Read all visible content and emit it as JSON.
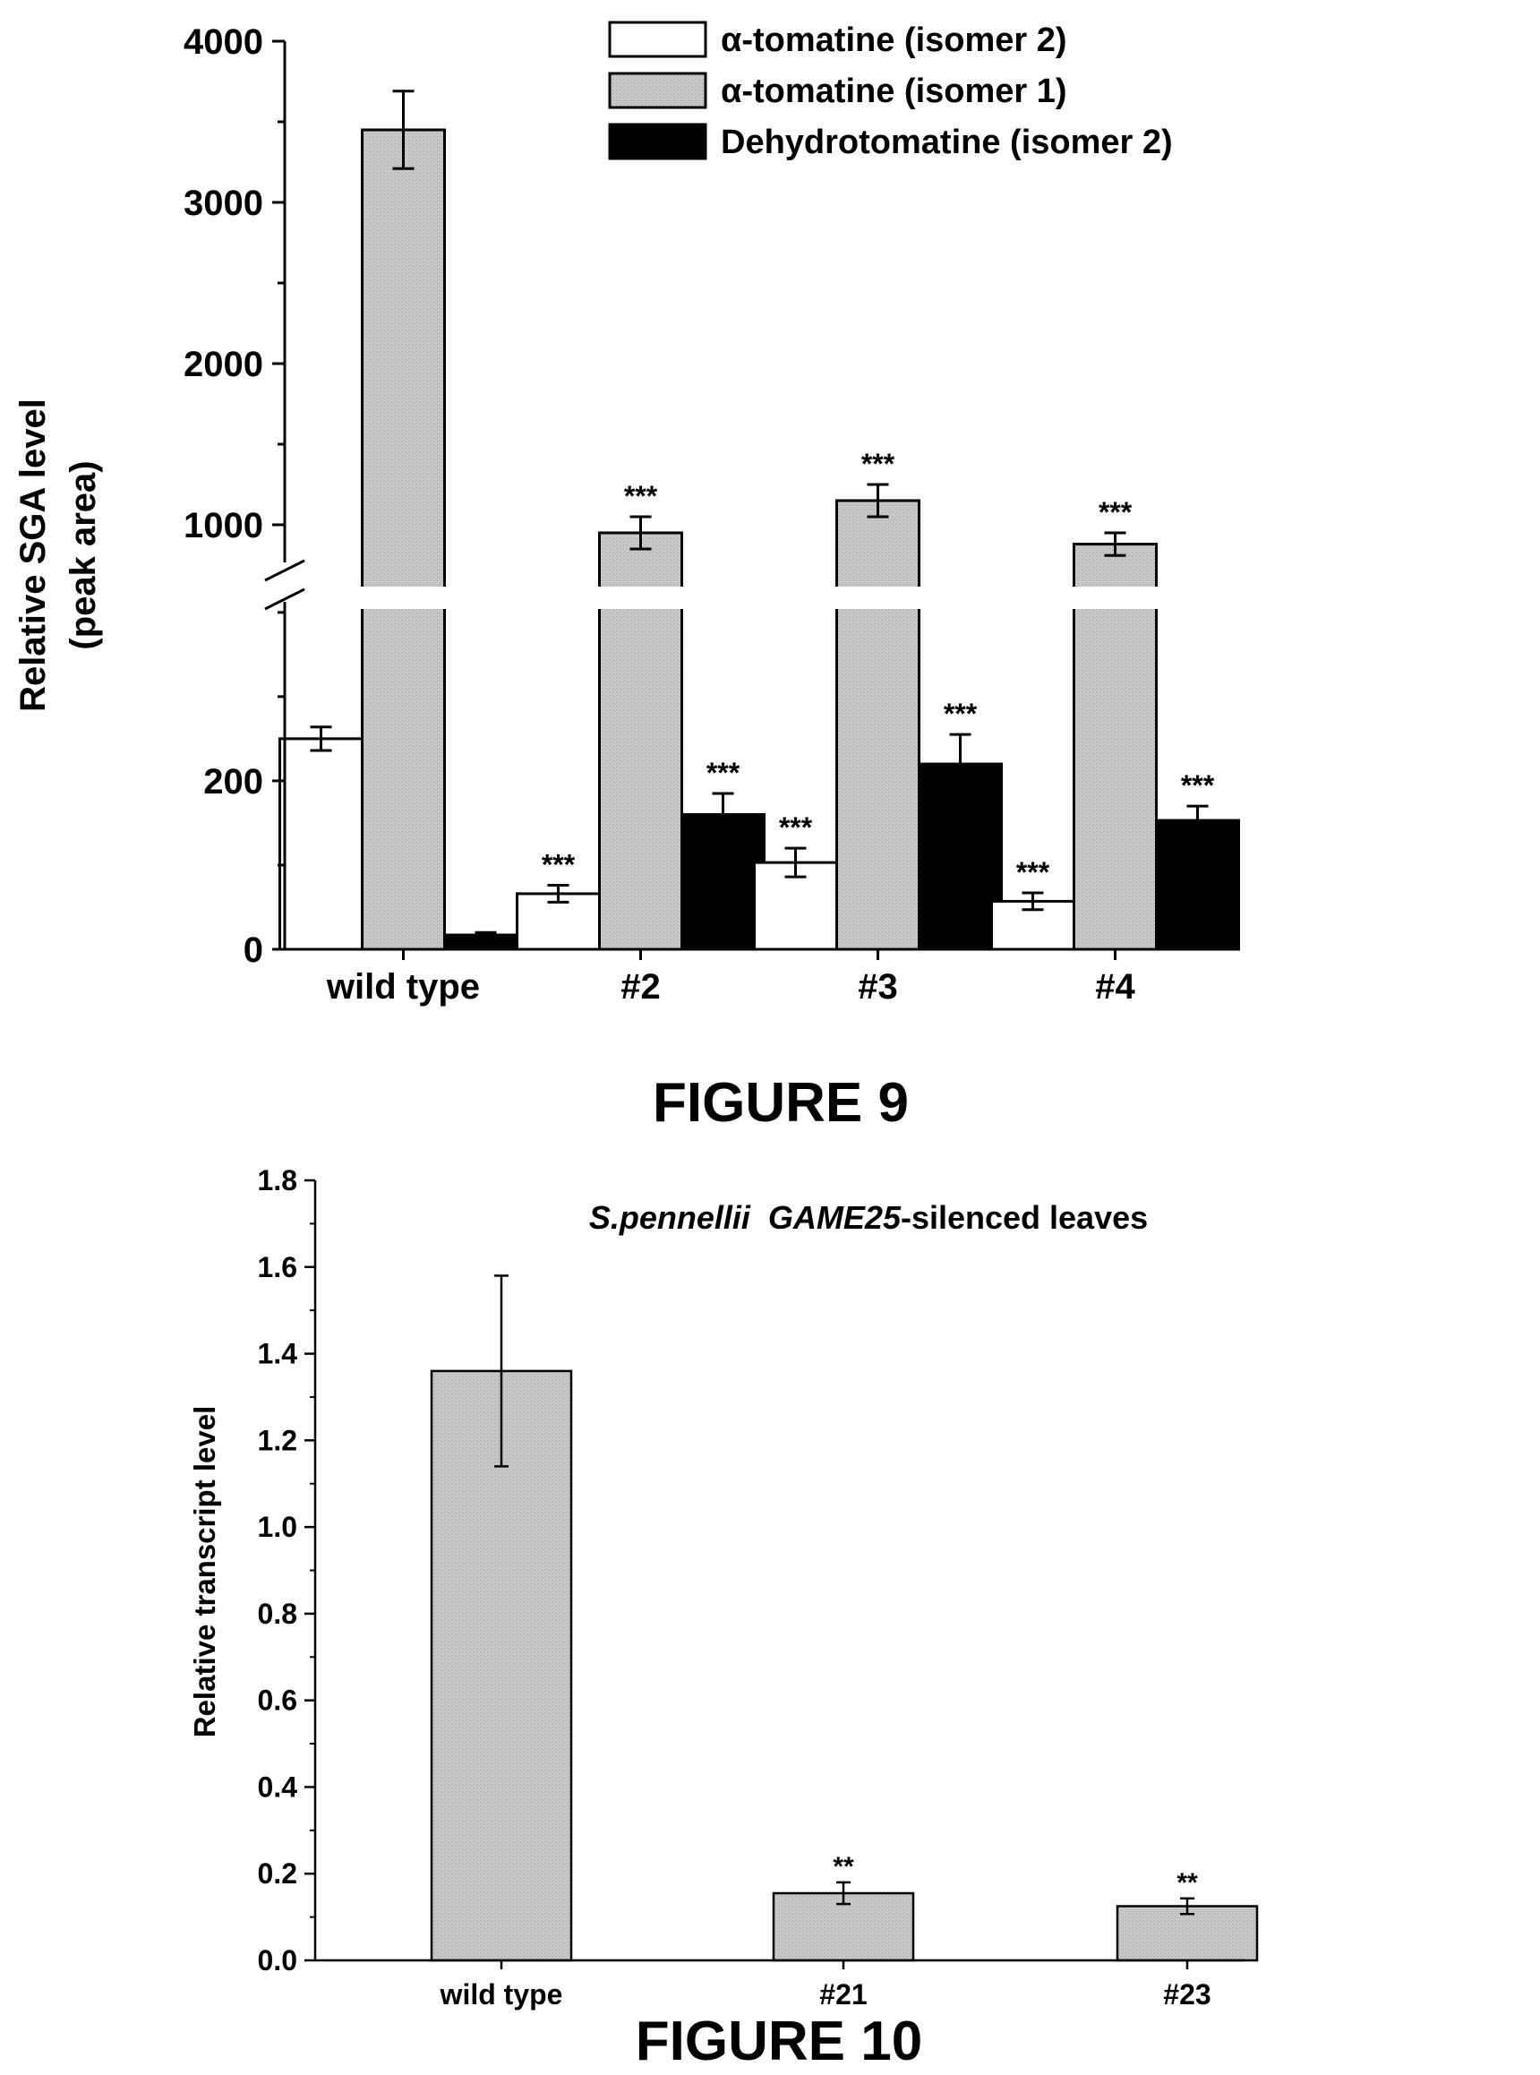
{
  "chart_data": [
    {
      "type": "bar",
      "ylabel": "Relative SGA level",
      "ylabel2": "(peak area)",
      "categories": [
        "wild type",
        "#2",
        "#3",
        "#4"
      ],
      "ylim_lower": [
        0,
        420
      ],
      "ylim_upper": [
        700,
        4000
      ],
      "yticks_lower": [
        0,
        200
      ],
      "yticks_upper": [
        1000,
        2000,
        3000,
        4000
      ],
      "axis_break": true,
      "grid": false,
      "legend_position": "top-right",
      "series": [
        {
          "name": "α-tomatine (isomer 2)",
          "values": [
            250,
            66,
            103,
            57
          ],
          "errors": [
            14,
            10,
            17,
            10
          ],
          "sig": [
            "",
            "***",
            "***",
            "***"
          ],
          "color": "#ffffff"
        },
        {
          "name": "α-tomatine (isomer 1)",
          "values": [
            3450,
            950,
            1150,
            880
          ],
          "errors": [
            240,
            100,
            100,
            70
          ],
          "sig": [
            "",
            "***",
            "***",
            "***"
          ],
          "color": "#c8c8c8"
        },
        {
          "name": "Dehydrotomatine (isomer 2)",
          "values": [
            17,
            160,
            220,
            153
          ],
          "errors": [
            3,
            25,
            35,
            17
          ],
          "sig": [
            "",
            "***",
            "***",
            "***"
          ],
          "color": "#000000"
        }
      ],
      "caption": "FIGURE 9"
    },
    {
      "type": "bar",
      "title_italic_1": "S.pennellii",
      "title_italic_2": "GAME25",
      "title_rest": "-silenced leaves",
      "ylabel": "Relative transcript level",
      "categories": [
        "wild type",
        "#21",
        "#23"
      ],
      "ylim": [
        0,
        1.8
      ],
      "yticks": [
        0.0,
        0.2,
        0.4,
        0.6,
        0.8,
        1.0,
        1.2,
        1.4,
        1.6,
        1.8
      ],
      "grid": false,
      "series": [
        {
          "values": [
            1.36,
            0.155,
            0.125
          ],
          "errors": [
            0.22,
            0.025,
            0.018
          ],
          "sig": [
            "",
            "**",
            "**"
          ],
          "color": "#c8c8c8"
        }
      ],
      "caption": "FIGURE 10"
    }
  ]
}
